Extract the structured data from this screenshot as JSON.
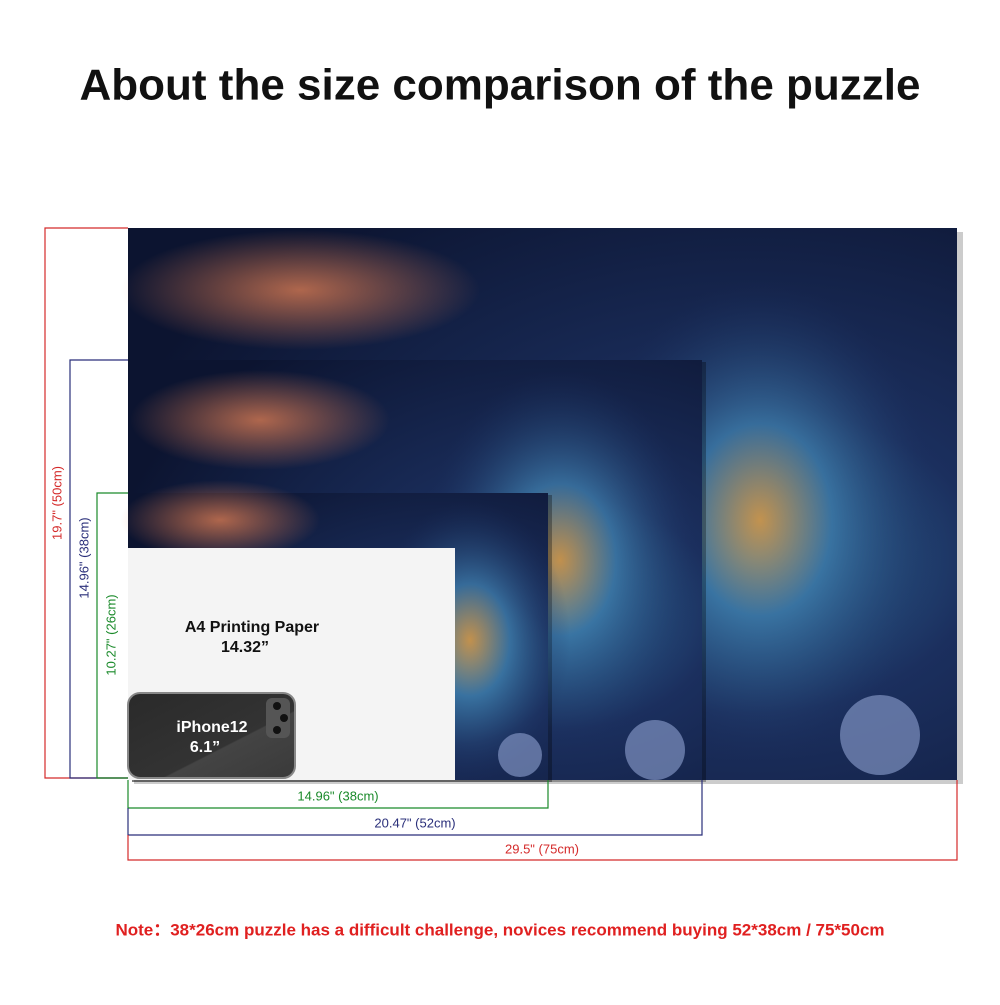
{
  "header": {
    "title": "About the size comparison of the puzzle"
  },
  "vertical_dimensions": [
    {
      "label": "19.7\" (50cm)"
    },
    {
      "label": "14.96\" (38cm)"
    },
    {
      "label": "10.27\" (26cm)"
    }
  ],
  "horizontal_dimensions": [
    {
      "label": "14.96\" (38cm)"
    },
    {
      "label": "20.47\" (52cm)"
    },
    {
      "label": "29.5\" (75cm)"
    }
  ],
  "a4": {
    "name": "A4 Printing Paper",
    "size": "14.32”"
  },
  "phone": {
    "name": "iPhone12",
    "size": "6.1”"
  },
  "note": "Note：38*26cm puzzle has a difficult challenge, novices recommend buying 52*38cm / 75*50cm"
}
